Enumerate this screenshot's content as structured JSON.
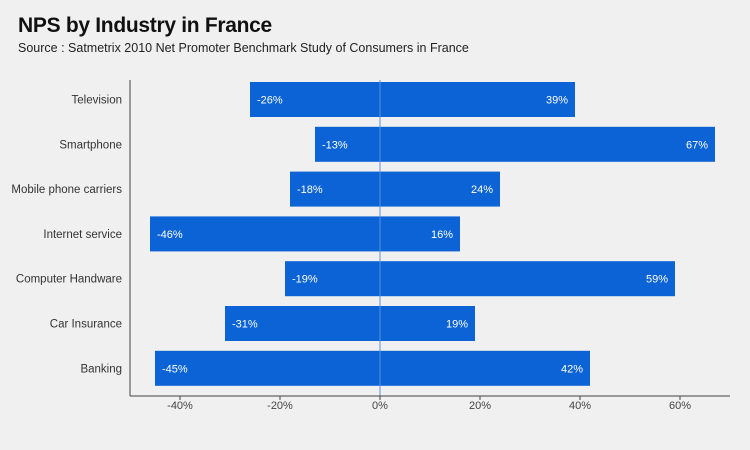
{
  "title": "NPS by Industry in France",
  "subtitle": "Source : Satmetrix 2010 Net Promoter Benchmark Study of Consumers in France",
  "colors": {
    "bar": "#0b63d5",
    "background": "#f0f0f0",
    "axis": "#444444",
    "zero_line": "#5b8fdc"
  },
  "chart_data": {
    "type": "bar",
    "orientation": "horizontal",
    "categories": [
      "Television",
      "Smartphone",
      "Mobile phone carriers",
      "Internet service",
      "Computer Handware",
      "Car Insurance",
      "Banking"
    ],
    "series": [
      {
        "values": [
          -26,
          -13,
          -18,
          -46,
          -19,
          -31,
          -45
        ],
        "labels": [
          "-26%",
          "-13%",
          "-18%",
          "-46%",
          "-19%",
          "-31%",
          "-45%"
        ]
      },
      {
        "values": [
          39,
          67,
          24,
          16,
          59,
          19,
          42
        ],
        "labels": [
          "39%",
          "67%",
          "24%",
          "16%",
          "59%",
          "19%",
          "42%"
        ]
      }
    ],
    "xlim": [
      -50,
      70
    ],
    "xticks": [
      -40,
      -20,
      0,
      20,
      40,
      60
    ],
    "xtick_labels": [
      "-40%",
      "-20%",
      "0%",
      "20%",
      "40%",
      "60%"
    ],
    "grid": false,
    "legend": "none"
  }
}
